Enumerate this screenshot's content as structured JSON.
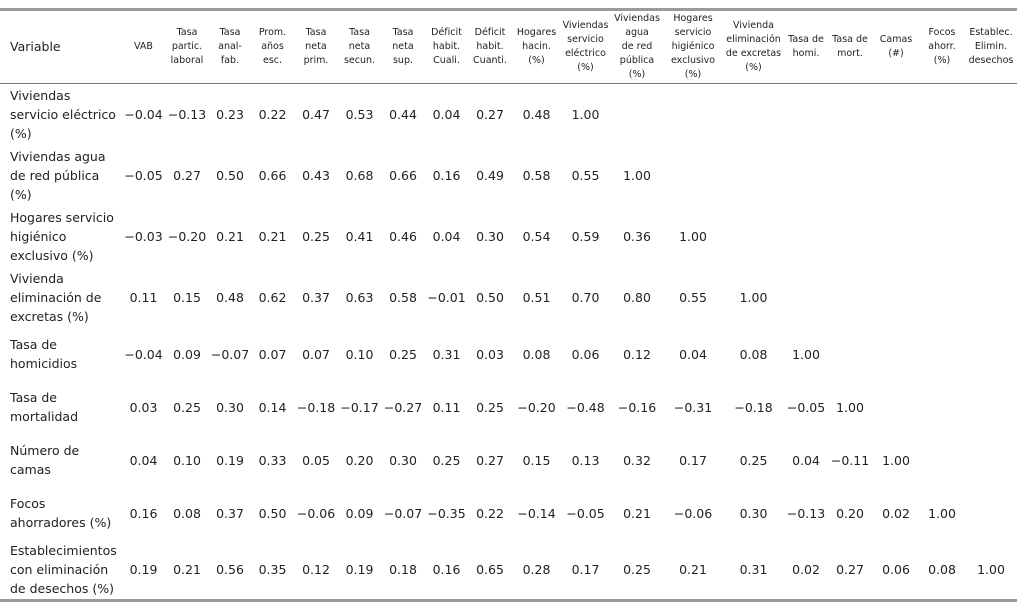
{
  "table": {
    "header": [
      [
        "Variable"
      ],
      [
        "VAB"
      ],
      [
        "Tasa",
        "partic.",
        "laboral"
      ],
      [
        "Tasa",
        "anal-",
        "fab."
      ],
      [
        "Prom.",
        "años",
        "esc."
      ],
      [
        "Tasa",
        "neta",
        "prim."
      ],
      [
        "Tasa",
        "neta",
        "secun."
      ],
      [
        "Tasa",
        "neta",
        "sup."
      ],
      [
        "Déficit",
        "habit.",
        "Cuali."
      ],
      [
        "Déficit",
        "habit.",
        "Cuanti."
      ],
      [
        "Hogares",
        "hacin.",
        "(%)"
      ],
      [
        "Viviendas",
        "servicio",
        "eléctrico",
        "(%)"
      ],
      [
        "Viviendas",
        "agua",
        "de red",
        "pública",
        "(%)"
      ],
      [
        "Hogares",
        "servicio",
        "higiénico",
        "exclusivo",
        "(%)"
      ],
      [
        "Vivienda",
        "eliminación",
        "de excretas",
        "(%)"
      ],
      [
        "Tasa de",
        "homi."
      ],
      [
        "Tasa de",
        "mort."
      ],
      [
        "Camas",
        "(#)"
      ],
      [
        "Focos",
        "ahorr.",
        "(%)"
      ],
      [
        "Establec.",
        "Elimin.",
        "desechos"
      ]
    ],
    "rows": [
      [
        "Viviendas servicio eléctrico (%)",
        "−0.04",
        "−0.13",
        "0.23",
        "0.22",
        "0.47",
        "0.53",
        "0.44",
        "0.04",
        "0.27",
        "0.48",
        "1.00"
      ],
      [
        "Viviendas agua de red pública (%)",
        "−0.05",
        "0.27",
        "0.50",
        "0.66",
        "0.43",
        "0.68",
        "0.66",
        "0.16",
        "0.49",
        "0.58",
        "0.55",
        "1.00"
      ],
      [
        "Hogares servicio higiénico exclusivo (%)",
        "−0.03",
        "−0.20",
        "0.21",
        "0.21",
        "0.25",
        "0.41",
        "0.46",
        "0.04",
        "0.30",
        "0.54",
        "0.59",
        "0.36",
        "1.00"
      ],
      [
        "Vivienda eliminación de excretas (%)",
        "0.11",
        "0.15",
        "0.48",
        "0.62",
        "0.37",
        "0.63",
        "0.58",
        "−0.01",
        "0.50",
        "0.51",
        "0.70",
        "0.80",
        "0.55",
        "1.00"
      ],
      [
        "Tasa de homicidios",
        "−0.04",
        "0.09",
        "−0.07",
        "0.07",
        "0.07",
        "0.10",
        "0.25",
        "0.31",
        "0.03",
        "0.08",
        "0.06",
        "0.12",
        "0.04",
        "0.08",
        "1.00"
      ],
      [
        "Tasa de mortalidad",
        "0.03",
        "0.25",
        "0.30",
        "0.14",
        "−0.18",
        "−0.17",
        "−0.27",
        "0.11",
        "0.25",
        "−0.20",
        "−0.48",
        "−0.16",
        "−0.31",
        "−0.18",
        "−0.05",
        "1.00"
      ],
      [
        "Número de camas",
        "0.04",
        "0.10",
        "0.19",
        "0.33",
        "0.05",
        "0.20",
        "0.30",
        "0.25",
        "0.27",
        "0.15",
        "0.13",
        "0.32",
        "0.17",
        "0.25",
        "0.04",
        "−0.11",
        "1.00"
      ],
      [
        "Focos ahorradores (%)",
        "0.16",
        "0.08",
        "0.37",
        "0.50",
        "−0.06",
        "0.09",
        "−0.07",
        "−0.35",
        "0.22",
        "−0.14",
        "−0.05",
        "0.21",
        "−0.06",
        "0.30",
        "−0.13",
        "0.20",
        "0.02",
        "1.00"
      ],
      [
        "Establecimientos con eliminación de desechos (%)",
        "0.19",
        "0.21",
        "0.56",
        "0.35",
        "0.12",
        "0.19",
        "0.18",
        "0.16",
        "0.65",
        "0.28",
        "0.17",
        "0.25",
        "0.21",
        "0.31",
        "0.02",
        "0.27",
        "0.06",
        "0.08",
        "1.00"
      ]
    ]
  }
}
